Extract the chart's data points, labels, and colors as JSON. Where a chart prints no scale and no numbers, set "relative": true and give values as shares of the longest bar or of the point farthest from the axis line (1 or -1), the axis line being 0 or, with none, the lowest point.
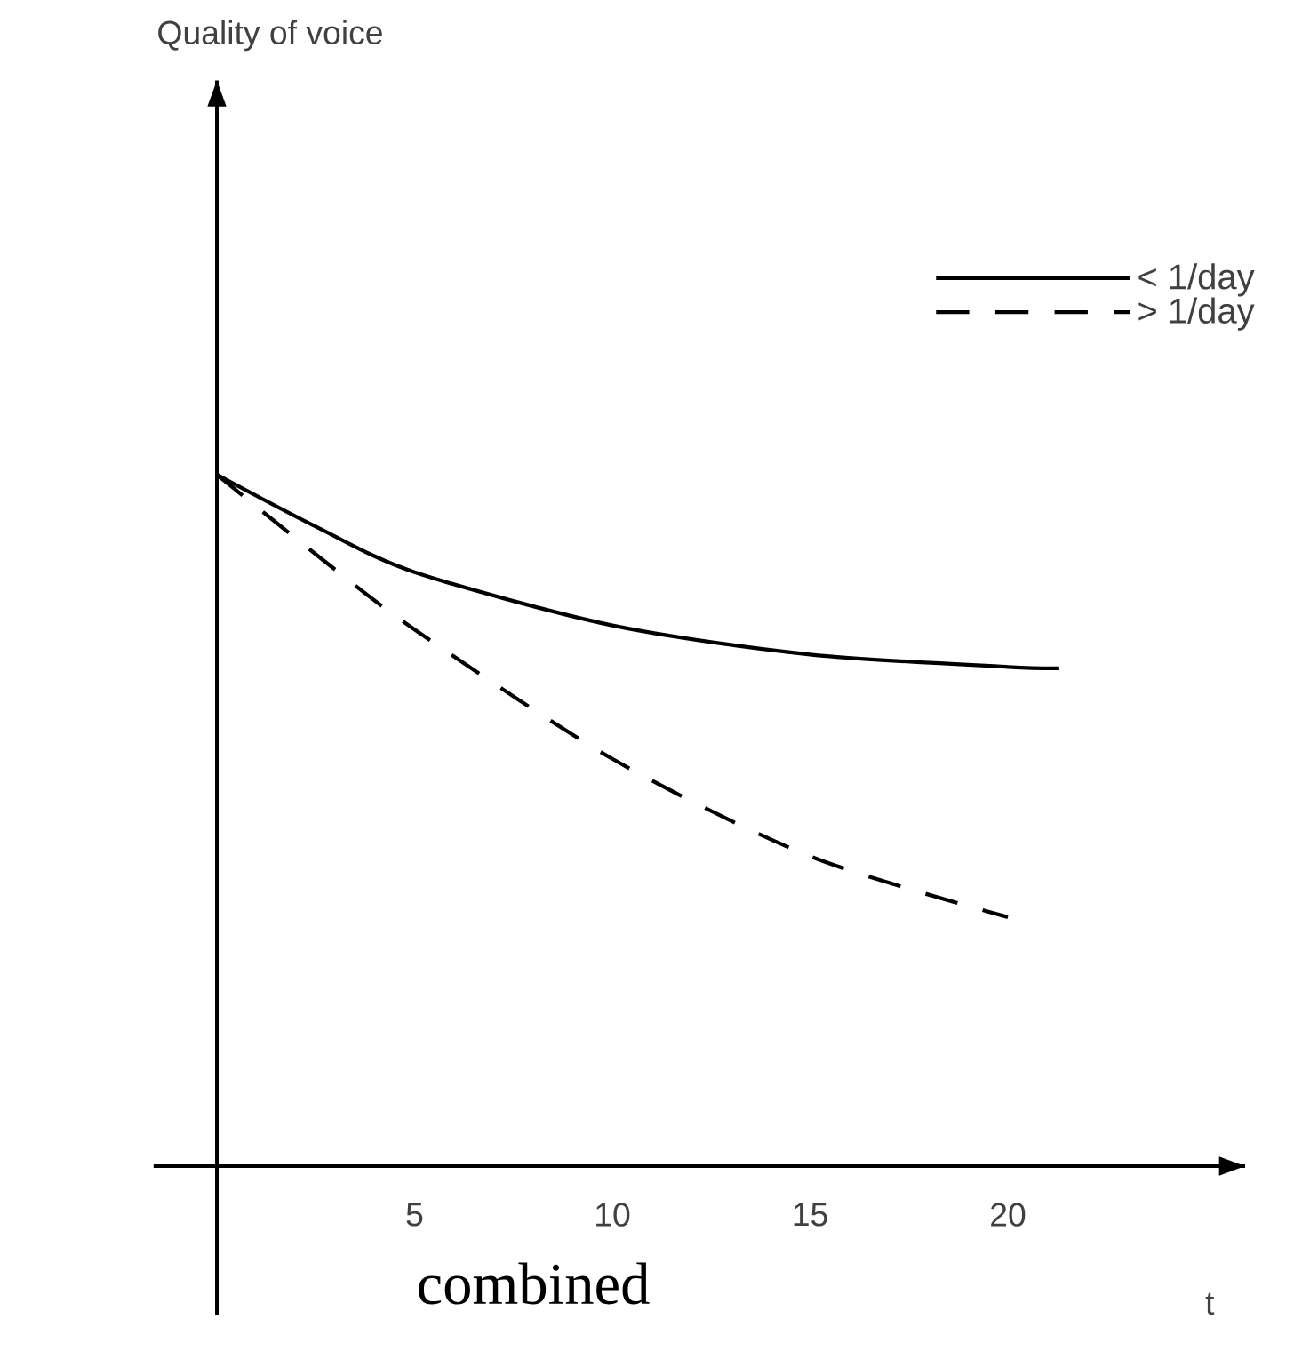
{
  "chart_data": {
    "type": "line",
    "xlabel": "t",
    "relative": true,
    "xlim": [
      -1.6,
      26
    ],
    "xticks": [
      5,
      10,
      15,
      20
    ],
    "legend": "top right",
    "annotations": [
      "Quality of voice",
      "combined"
    ],
    "series": [
      {
        "name": "< 1/day",
        "color": "#000000",
        "line_style": "solid",
        "x": [
          0,
          2.5,
          5,
          10,
          15,
          20,
          21.3
        ],
        "values": [
          1,
          0.925,
          0.859,
          0.782,
          0.74,
          0.722,
          0.72
        ]
      },
      {
        "name": "> 1/day",
        "color": "#000000",
        "line_style": "dashed",
        "x": [
          0,
          2.5,
          5,
          10,
          15,
          20
        ],
        "values": [
          1,
          0.885,
          0.776,
          0.589,
          0.448,
          0.36
        ]
      }
    ]
  }
}
